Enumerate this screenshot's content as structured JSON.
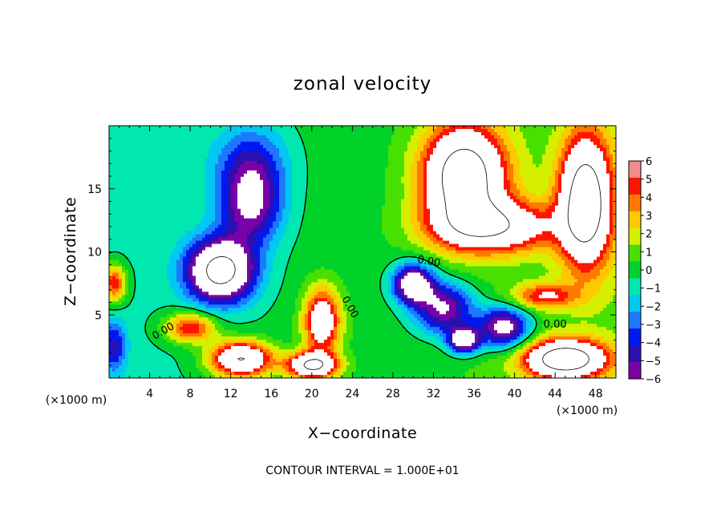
{
  "chart_data": {
    "type": "heatmap",
    "title": "zonal velocity",
    "xlabel": "X−coordinate",
    "ylabel": "Z−coordinate",
    "x_units": "(×1000 m)",
    "y_units": "(×1000 m)",
    "xlim": [
      0,
      50
    ],
    "ylim": [
      0,
      20
    ],
    "x_ticks": [
      4,
      8,
      12,
      16,
      20,
      24,
      28,
      32,
      36,
      40,
      44,
      48
    ],
    "y_ticks": [
      5,
      10,
      15
    ],
    "colorbar": {
      "min": -6,
      "max": 6,
      "ticks": [
        6,
        5,
        4,
        3,
        2,
        1,
        0,
        -1,
        -2,
        -3,
        -4,
        -5,
        -6
      ],
      "tick_labels": [
        "6",
        "5",
        "4",
        "3",
        "2",
        "1",
        "0",
        "−1",
        "−2",
        "−3",
        "−4",
        "−5",
        "−6"
      ],
      "colors": [
        "#7a00a8",
        "#2a10b0",
        "#0018f0",
        "#1e78ff",
        "#00c8f0",
        "#00e8b0",
        "#00d22a",
        "#48e000",
        "#d4f000",
        "#ffc800",
        "#ff7800",
        "#ff1400",
        "#f08c8c"
      ],
      "out_of_range_color": "#ffffff"
    },
    "contour_labels": [
      "0.00",
      "0.00",
      "0.00",
      "0.00"
    ],
    "footer": "CONTOUR INTERVAL = 1.000E+01",
    "field_features": [
      {
        "kind": "max",
        "x": 35,
        "y": 16,
        "sx": 4.0,
        "sy": 4.0,
        "a": 12
      },
      {
        "kind": "max",
        "x": 47,
        "y": 14,
        "sx": 2.5,
        "sy": 5.0,
        "a": 12
      },
      {
        "kind": "max",
        "x": 38,
        "y": 12,
        "sx": 6.0,
        "sy": 2.0,
        "a": 8
      },
      {
        "kind": "min",
        "x": 11,
        "y": 8.5,
        "sx": 3.2,
        "sy": 2.4,
        "a": -12
      },
      {
        "kind": "min",
        "x": 14,
        "y": 13.5,
        "sx": 3.0,
        "sy": 3.0,
        "a": -6
      },
      {
        "kind": "min",
        "x": 14,
        "y": 17,
        "sx": 3.5,
        "sy": 3.0,
        "a": -4
      },
      {
        "kind": "max",
        "x": 8,
        "y": 4,
        "sx": 2.5,
        "sy": 1.2,
        "a": 6
      },
      {
        "kind": "max",
        "x": 13,
        "y": 1.5,
        "sx": 3.0,
        "sy": 1.4,
        "a": 10
      },
      {
        "kind": "max",
        "x": 21,
        "y": 4.5,
        "sx": 1.8,
        "sy": 2.6,
        "a": 8
      },
      {
        "kind": "max",
        "x": 20,
        "y": 1.0,
        "sx": 2.5,
        "sy": 1.0,
        "a": 10
      },
      {
        "kind": "min",
        "x": 33,
        "y": 5.5,
        "sx": 3.0,
        "sy": 2.0,
        "a": -7
      },
      {
        "kind": "min",
        "x": 39,
        "y": 4.0,
        "sx": 2.5,
        "sy": 1.6,
        "a": -8
      },
      {
        "kind": "min",
        "x": 35,
        "y": 3.0,
        "sx": 1.5,
        "sy": 1.0,
        "a": -9
      },
      {
        "kind": "min",
        "x": 30,
        "y": 7.5,
        "sx": 2.0,
        "sy": 1.5,
        "a": -9
      },
      {
        "kind": "max",
        "x": 45,
        "y": 1.5,
        "sx": 4.0,
        "sy": 1.5,
        "a": 12
      },
      {
        "kind": "max",
        "x": 43,
        "y": 6.5,
        "sx": 3.0,
        "sy": 1.0,
        "a": 5
      },
      {
        "kind": "min",
        "x": 0.5,
        "y": 2.5,
        "sx": 1.2,
        "sy": 2.0,
        "a": -4
      },
      {
        "kind": "max",
        "x": 0.5,
        "y": 7.5,
        "sx": 1.2,
        "sy": 1.5,
        "a": 6
      }
    ]
  }
}
